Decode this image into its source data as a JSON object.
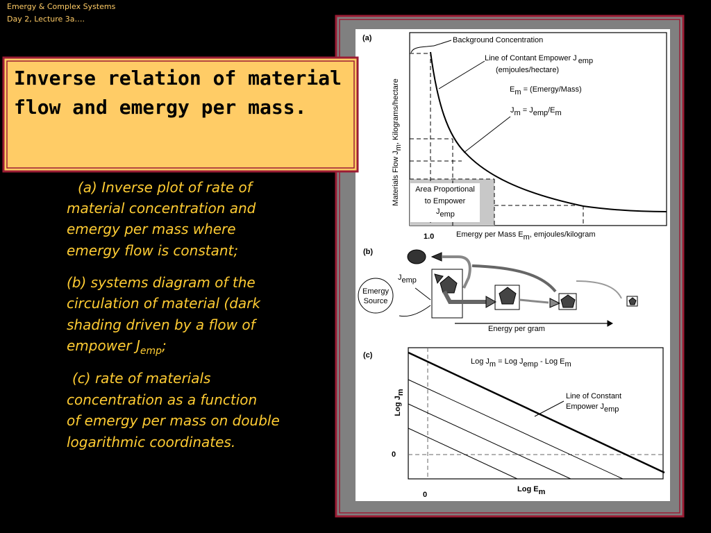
{
  "header": {
    "course": "Emergy & Complex Systems",
    "lecture": "Day 2, Lecture 3a…."
  },
  "title": [
    "Inverse relation of material",
    "flow and emergy per mass."
  ],
  "body": {
    "a": [
      "(a) Inverse plot of rate of",
      "material concentration and",
      "emergy per mass where",
      "emergy flow is constant;"
    ],
    "b": {
      "lines": [
        "(b) systems diagram of the",
        "circulation of material (dark",
        "shading driven by a flow of"
      ],
      "last": "empower J",
      "sub": "emp",
      "end": ";"
    },
    "c": [
      "(c) rate of materials",
      "concentration as a function",
      "of emergy per mass on double",
      "logarithmic coordinates."
    ]
  },
  "figure": {
    "a": {
      "label": "(a)",
      "background": "Background Concentration",
      "line": {
        "text": "Line of Contant Empower J",
        "sub": "emp",
        "units": "(emjoules/hectare)"
      },
      "em": {
        "main": "E",
        "sub": "m",
        "rest": " = (Emergy/Mass)"
      },
      "jm": {
        "j": "J",
        "sub1": "m",
        "mid": " =  J",
        "sub2": "emp",
        "slash": "/E",
        "sub3": "m"
      },
      "yaxis": {
        "text": "Materials Flow J",
        "sub": "m",
        "rest": ", Kilograms/hectare"
      },
      "area": {
        "line1": "Area Proportional",
        "line2": "to Empower",
        "j": "J",
        "sub": "emp"
      },
      "one": "1.0",
      "xaxis": {
        "text": "Emergy per Mass  E",
        "sub": "m",
        "rest": ", emjoules/kilogram"
      }
    },
    "b": {
      "label": "(b)",
      "source": [
        "Emergy",
        "Source"
      ],
      "j": "J",
      "sub": "emp",
      "energy": "Energy per gram"
    },
    "c": {
      "label": "(c)",
      "eq": {
        "a": "Log J",
        "s1": "m",
        "b": " = Log J",
        "s2": "emp",
        "c": " - Log E",
        "s3": "m"
      },
      "line": {
        "line1": "Line of Constant",
        "line2": "Empower  J",
        "sub": "emp"
      },
      "yaxis": {
        "text": "Log J",
        "sub": "m"
      },
      "zero_y": "0",
      "zero_x": "0",
      "xaxis": {
        "text": "Log  E",
        "sub": "m"
      }
    }
  }
}
